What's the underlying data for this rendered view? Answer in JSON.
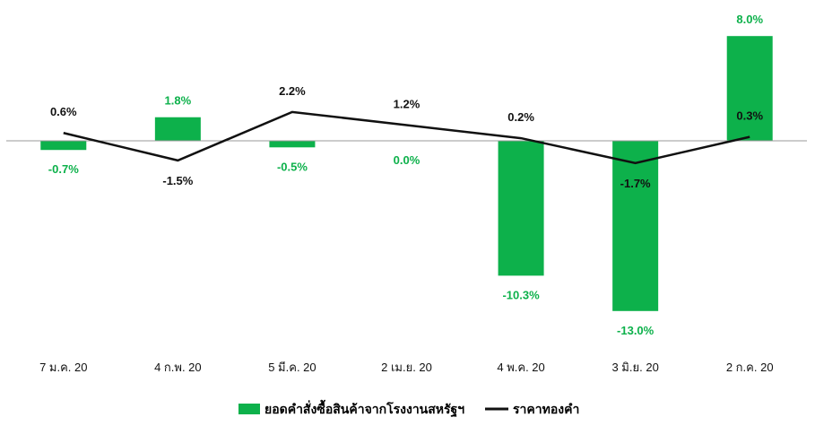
{
  "chart_data": {
    "type": "bar",
    "categories": [
      "7 ม.ค. 20",
      "4 ก.พ. 20",
      "5 มี.ค. 20",
      "2 เม.ย. 20",
      "4 พ.ค. 20",
      "3 มิ.ย. 20",
      "2 ก.ค. 20"
    ],
    "series": [
      {
        "name": "ยอดคำสั่งซื้อสินค้าจากโรงงานสหรัฐฯ",
        "kind": "bar",
        "color": "#0db14b",
        "values": [
          -0.7,
          1.8,
          -0.5,
          0.0,
          -10.3,
          -13.0,
          8.0
        ],
        "labels": [
          "-0.7%",
          "1.8%",
          "-0.5%",
          "0.0%",
          "-10.3%",
          "-13.0%",
          "8.0%"
        ]
      },
      {
        "name": "ราคาทองคำ",
        "kind": "line",
        "color": "#111111",
        "values": [
          0.6,
          -1.5,
          2.2,
          1.2,
          0.2,
          -1.7,
          0.3
        ],
        "labels": [
          "0.6%",
          "-1.5%",
          "2.2%",
          "1.2%",
          "0.2%",
          "-1.7%",
          "0.3%"
        ]
      }
    ],
    "ylim": [
      -14.5,
      10.0
    ],
    "grid": false,
    "legend_position": "bottom-center",
    "title": "",
    "xlabel": "",
    "ylabel": ""
  }
}
